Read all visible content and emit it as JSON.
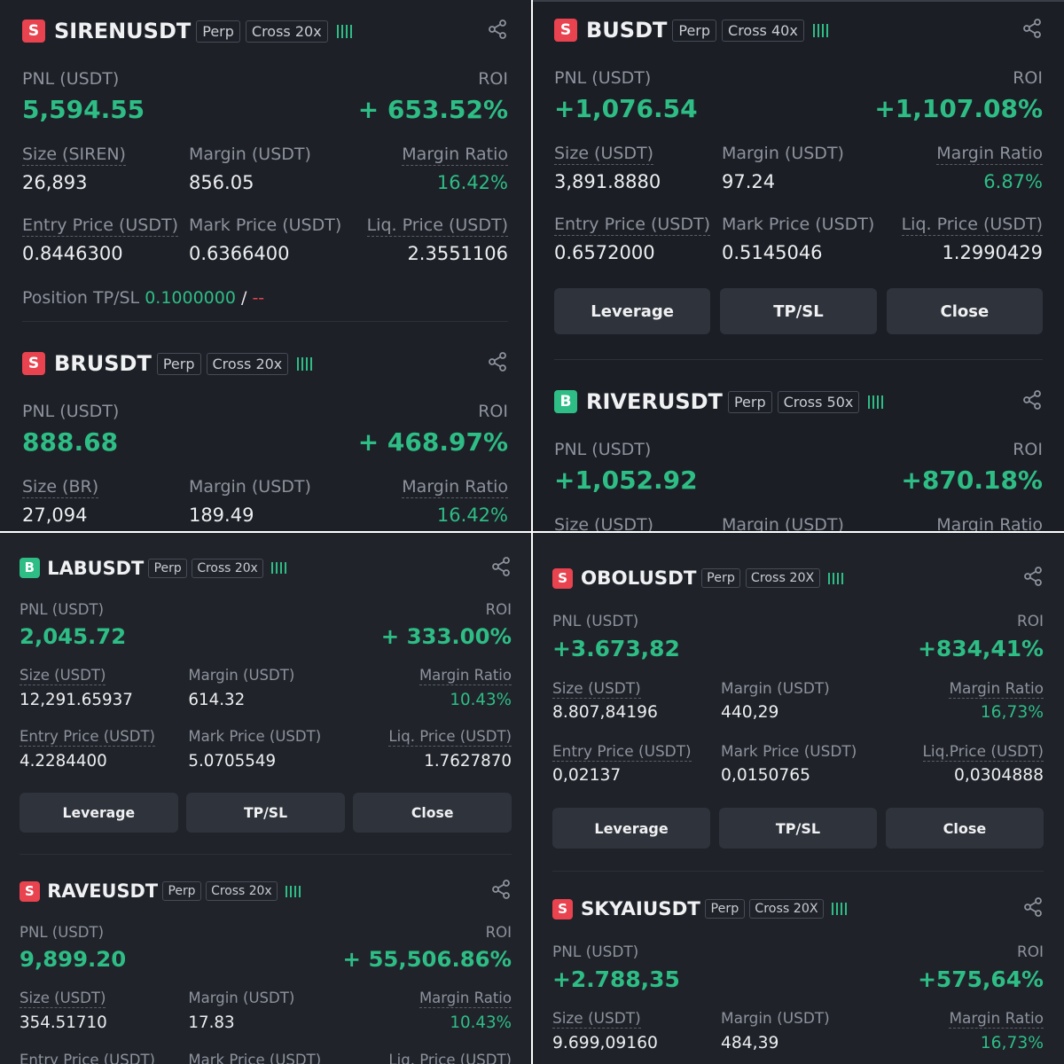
{
  "panels": [
    {
      "cards": [
        {
          "side": "S",
          "symbol": "SIRENUSDT",
          "tags": [
            "Perp",
            "Cross 20x"
          ],
          "pnl_label": "PNL (USDT)",
          "pnl": "5,594.55",
          "roi_label": "ROI",
          "roi": "+ 653.52%",
          "fields": [
            {
              "label": "Size (SIREN)",
              "value": "26,893"
            },
            {
              "label": "Margin (USDT)",
              "value": "856.05"
            },
            {
              "label": "Margin Ratio",
              "value": "16.42%"
            },
            {
              "label": "Entry Price (USDT)",
              "value": "0.8446300"
            },
            {
              "label": "Mark Price (USDT)",
              "value": "0.6366400"
            },
            {
              "label": "Liq. Price (USDT)",
              "value": "2.3551106"
            }
          ],
          "tpsl": {
            "label": "Position TP/SL",
            "tp": "0.1000000",
            "sep": "/",
            "sl": "--"
          }
        },
        {
          "side": "S",
          "symbol": "BRUSDT",
          "tags": [
            "Perp",
            "Cross 20x"
          ],
          "pnl_label": "PNL (USDT)",
          "pnl": "888.68",
          "roi_label": "ROI",
          "roi": "+ 468.97%",
          "fields": [
            {
              "label": "Size (BR)",
              "value": "27,094"
            },
            {
              "label": "Margin (USDT)",
              "value": "189.49"
            },
            {
              "label": "Margin Ratio",
              "value": "16.42%"
            }
          ]
        }
      ]
    },
    {
      "cards": [
        {
          "side": "S",
          "symbol": "BUSDT",
          "tags": [
            "Perp",
            "Cross 40x"
          ],
          "pnl_label": "PNL (USDT)",
          "pnl": "+1,076.54",
          "roi_label": "ROI",
          "roi": "+1,107.08%",
          "fields": [
            {
              "label": "Size (USDT)",
              "value": "3,891.8880"
            },
            {
              "label": "Margin (USDT)",
              "value": "97.24"
            },
            {
              "label": "Margin Ratio",
              "value": "6.87%"
            },
            {
              "label": "Entry Price (USDT)",
              "value": "0.6572000"
            },
            {
              "label": "Mark Price (USDT)",
              "value": "0.5145046"
            },
            {
              "label": "Liq. Price (USDT)",
              "value": "1.2990429"
            }
          ],
          "buttons": [
            "Leverage",
            "TP/SL",
            "Close"
          ]
        },
        {
          "side": "B",
          "symbol": "RIVERUSDT",
          "tags": [
            "Perp",
            "Cross 50x"
          ],
          "pnl_label": "PNL (USDT)",
          "pnl": "+1,052.92",
          "roi_label": "ROI",
          "roi": "+870.18%",
          "fields": [
            {
              "label": "Size (USDT)"
            },
            {
              "label": "Margin (USDT)"
            },
            {
              "label": "Margin Ratio"
            }
          ]
        }
      ]
    },
    {
      "cards": [
        {
          "side": "B",
          "symbol": "LABUSDT",
          "tags": [
            "Perp",
            "Cross 20x"
          ],
          "pnl_label": "PNL (USDT)",
          "pnl": "2,045.72",
          "roi_label": "ROI",
          "roi": "+ 333.00%",
          "fields": [
            {
              "label": "Size (USDT)",
              "value": "12,291.65937"
            },
            {
              "label": "Margin (USDT)",
              "value": "614.32"
            },
            {
              "label": "Margin Ratio",
              "value": "10.43%"
            },
            {
              "label": "Entry Price (USDT)",
              "value": "4.2284400"
            },
            {
              "label": "Mark Price (USDT)",
              "value": "5.0705549"
            },
            {
              "label": "Liq. Price (USDT)",
              "value": "1.7627870"
            }
          ],
          "buttons": [
            "Leverage",
            "TP/SL",
            "Close"
          ]
        },
        {
          "side": "S",
          "symbol": "RAVEUSDT",
          "tags": [
            "Perp",
            "Cross 20x"
          ],
          "pnl_label": "PNL (USDT)",
          "pnl": "9,899.20",
          "roi_label": "ROI",
          "roi": "+ 55,506.86%",
          "fields": [
            {
              "label": "Size (USDT)",
              "value": "354.51710"
            },
            {
              "label": "Margin (USDT)",
              "value": "17.83"
            },
            {
              "label": "Margin Ratio",
              "value": "10.43%"
            },
            {
              "label": "Entry Price (USDT)"
            },
            {
              "label": "Mark Price (USDT)"
            },
            {
              "label": "Liq. Price (USDT)"
            }
          ]
        }
      ]
    },
    {
      "cards": [
        {
          "side": "S",
          "symbol": "OBOLUSDT",
          "tags": [
            "Perp",
            "Cross 20X"
          ],
          "pnl_label": "PNL (USDT)",
          "pnl": "+3.673,82",
          "roi_label": "ROI",
          "roi": "+834,41%",
          "fields": [
            {
              "label": "Size (USDT)",
              "value": "8.807,84196"
            },
            {
              "label": "Margin (USDT)",
              "value": "440,29"
            },
            {
              "label": "Margin Ratio",
              "value": "16,73%"
            },
            {
              "label": "Entry Price (USDT)",
              "value": "0,02137"
            },
            {
              "label": "Mark Price (USDT)",
              "value": "0,0150765"
            },
            {
              "label": "Liq.Price (USDT)",
              "value": "0,0304888"
            }
          ],
          "buttons": [
            "Leverage",
            "TP/SL",
            "Close"
          ]
        },
        {
          "side": "S",
          "symbol": "SKYAIUSDT",
          "tags": [
            "Perp",
            "Cross 20X"
          ],
          "pnl_label": "PNL (USDT)",
          "pnl": "+2.788,35",
          "roi_label": "ROI",
          "roi": "+575,64%",
          "fields": [
            {
              "label": "Size (USDT)",
              "value": "9.699,09160"
            },
            {
              "label": "Margin (USDT)",
              "value": "484,39"
            },
            {
              "label": "Margin Ratio",
              "value": "16,73%"
            }
          ]
        }
      ]
    }
  ]
}
